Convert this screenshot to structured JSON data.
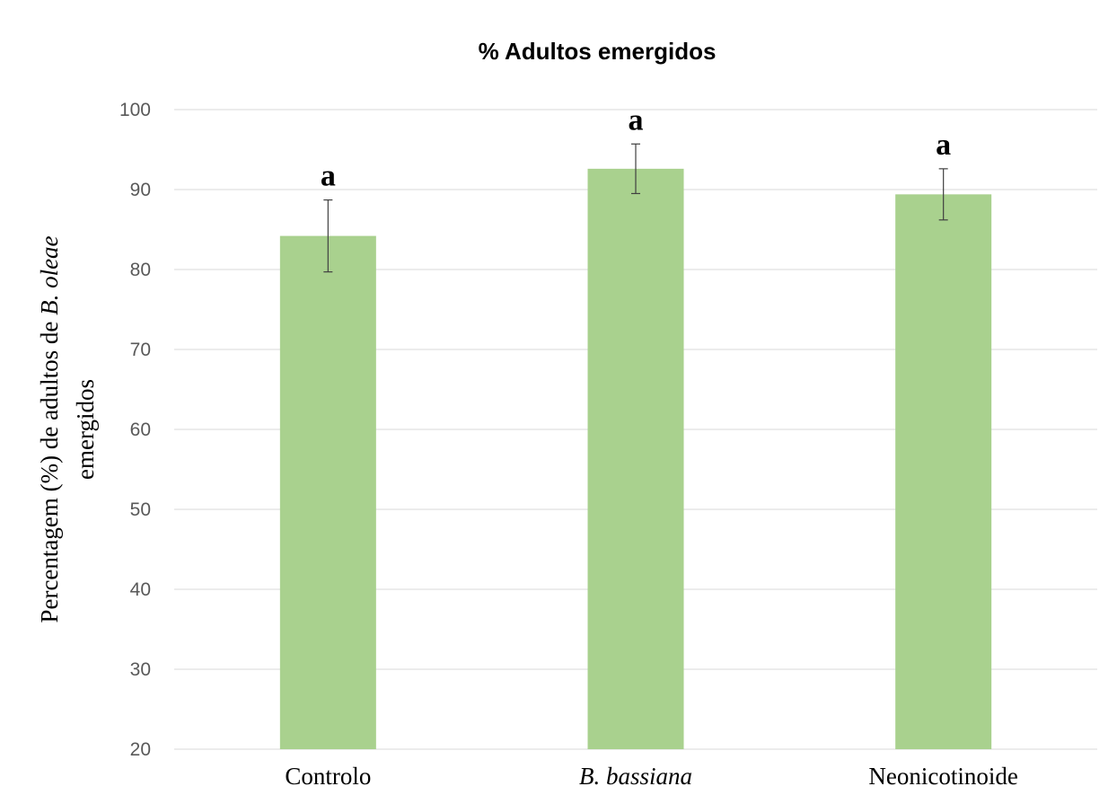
{
  "chart_data": {
    "type": "bar",
    "title": "%  Adultos emergidos",
    "ylabel_lines": [
      {
        "segments": [
          {
            "text": "Percentagem (%) de adultos de ",
            "italic": false
          },
          {
            "text": "B. oleae",
            "italic": true
          }
        ]
      },
      {
        "segments": [
          {
            "text": "emergidos",
            "italic": false
          }
        ]
      }
    ],
    "xlabel": "",
    "categories": [
      {
        "label": "Controlo",
        "italic": false
      },
      {
        "label": "B. bassiana",
        "italic": true
      },
      {
        "label": "Neonicotinoide",
        "italic": false
      }
    ],
    "values": [
      84.2,
      92.6,
      89.4
    ],
    "error_low": [
      79.7,
      89.5,
      86.2
    ],
    "error_high": [
      88.7,
      95.7,
      92.6
    ],
    "significance_letters": [
      "a",
      "a",
      "a"
    ],
    "ylim": [
      20,
      100
    ],
    "yticks": [
      20,
      30,
      40,
      50,
      60,
      70,
      80,
      90,
      100
    ],
    "grid": true,
    "legend": "none",
    "colors": {
      "bar": "#a9d18e",
      "grid": "#d9d9d9",
      "error_bar": "#404040",
      "tick_text": "#595959"
    }
  }
}
